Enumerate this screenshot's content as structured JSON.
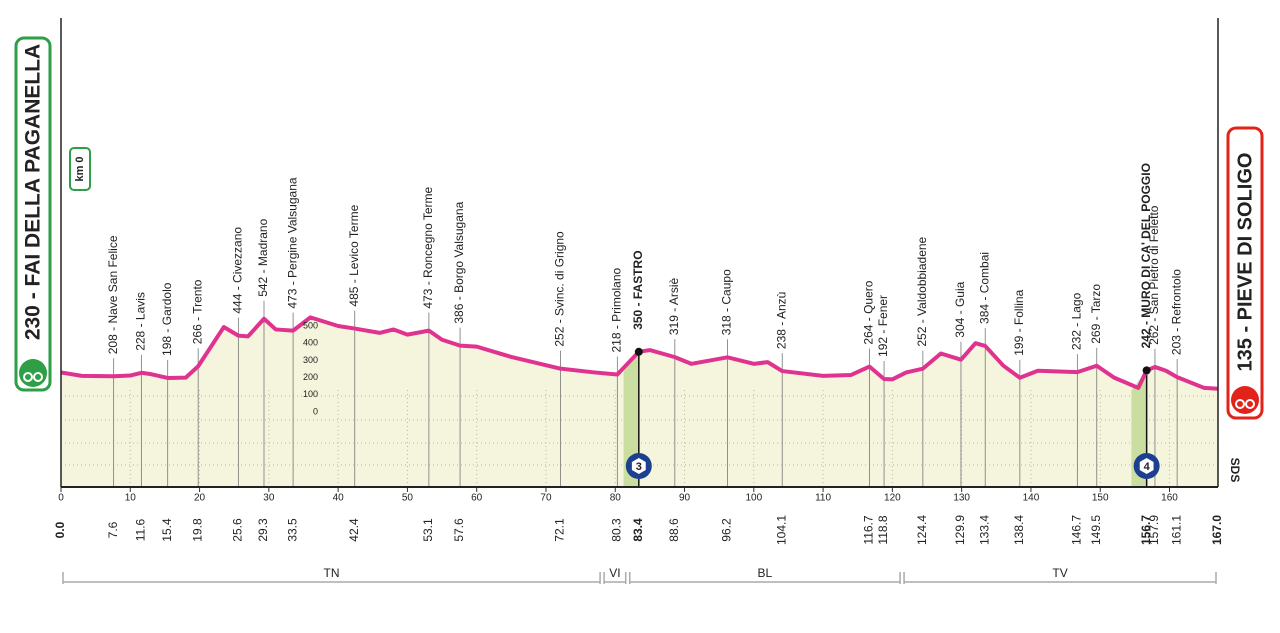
{
  "chart_data": {
    "type": "elevation-profile",
    "start": {
      "label": "230 - FAI DELLA PAGANELLA",
      "km": {
        "value": 0,
        "label": "0.0"
      },
      "marker": "km 0"
    },
    "finish": {
      "label": "135 - PIEVE DI SOLIGO",
      "km": {
        "value": 167,
        "label": "167.0"
      }
    },
    "logo": "SDS",
    "color": "#e0338f",
    "fill": "#f4f5dc",
    "climb_color": "#c9dea0",
    "xlim": [
      0,
      167
    ],
    "xticks": [
      0,
      10,
      20,
      30,
      40,
      50,
      60,
      70,
      80,
      90,
      100,
      110,
      120,
      130,
      140,
      150,
      160
    ],
    "ylim": [
      0,
      500
    ],
    "yticks": [
      0,
      100,
      200,
      300,
      400,
      500
    ],
    "x": [
      0,
      3,
      7.6,
      10,
      11.6,
      13,
      15.4,
      18,
      19.8,
      23.5,
      25.6,
      27,
      29.3,
      31,
      33.5,
      36,
      40,
      42.4,
      46,
      48,
      50,
      53.1,
      55,
      57.6,
      60,
      65,
      72.1,
      77,
      80.3,
      83.4,
      85,
      88.6,
      91,
      96.2,
      100,
      102,
      104.1,
      110,
      114,
      116.7,
      118.8,
      120,
      122,
      124.4,
      127,
      129.9,
      132,
      133.4,
      136,
      138.4,
      141,
      146.7,
      149.5,
      152,
      155.5,
      156.7,
      157.9,
      159.5,
      161.1,
      165,
      167
    ],
    "values": [
      230,
      210,
      208,
      212,
      228,
      220,
      198,
      200,
      266,
      494,
      444,
      440,
      542,
      480,
      473,
      550,
      500,
      485,
      460,
      480,
      450,
      473,
      420,
      386,
      380,
      320,
      252,
      230,
      218,
      350,
      360,
      319,
      280,
      318,
      280,
      290,
      238,
      210,
      215,
      264,
      192,
      190,
      230,
      252,
      340,
      304,
      400,
      384,
      270,
      199,
      240,
      232,
      269,
      200,
      140,
      242,
      262,
      240,
      203,
      140,
      135
    ],
    "waypoints": [
      {
        "label": "208 - Nave San Felice",
        "altitude": 208,
        "km": 7.6
      },
      {
        "label": "228 - Lavis",
        "altitude": 228,
        "km": 11.6
      },
      {
        "label": "198 - Gardolo",
        "altitude": 198,
        "km": 15.4
      },
      {
        "label": "266 - Trento",
        "altitude": 266,
        "km": 19.8
      },
      {
        "label": "444 - Civezzano",
        "altitude": 444,
        "km": 25.6
      },
      {
        "label": "542 - Madrano",
        "altitude": 542,
        "km": 29.3
      },
      {
        "label": "473 - Pergine Valsugana",
        "altitude": 473,
        "km": 33.5
      },
      {
        "label": "485 - Levico Terme",
        "altitude": 485,
        "km": 42.4
      },
      {
        "label": "473 - Roncegno Terme",
        "altitude": 473,
        "km": 53.1
      },
      {
        "label": "386 - Borgo Valsugana",
        "altitude": 386,
        "km": 57.6
      },
      {
        "label": "252 - Svinc. di Grigno",
        "altitude": 252,
        "km": 72.1
      },
      {
        "label": "218 - Primolano",
        "altitude": 218,
        "km": 80.3
      },
      {
        "label": "350 - FASTRO",
        "altitude": 350,
        "km": 83.4,
        "category": 3
      },
      {
        "label": "319 - Arsiè",
        "altitude": 319,
        "km": 88.6
      },
      {
        "label": "318 - Caupo",
        "altitude": 318,
        "km": 96.2
      },
      {
        "label": "238 - Anzù",
        "altitude": 238,
        "km": 104.1
      },
      {
        "label": "264 - Quero",
        "altitude": 264,
        "km": 116.7
      },
      {
        "label": "192 - Fener",
        "altitude": 192,
        "km": 118.8
      },
      {
        "label": "252 - Valdobbiadene",
        "altitude": 252,
        "km": 124.4
      },
      {
        "label": "304 - Guia",
        "altitude": 304,
        "km": 129.9
      },
      {
        "label": "384 - Combai",
        "altitude": 384,
        "km": 133.4
      },
      {
        "label": "199 - Follina",
        "altitude": 199,
        "km": 138.4
      },
      {
        "label": "232 - Lago",
        "altitude": 232,
        "km": 146.7
      },
      {
        "label": "269 - Tarzo",
        "altitude": 269,
        "km": 149.5
      },
      {
        "label": "242 - MURO DI CA' DEL POGGIO",
        "altitude": 242,
        "km": 156.7,
        "category": 4
      },
      {
        "label": "262 - San Pietro di Feletto",
        "altitude": 262,
        "km": 157.9
      },
      {
        "label": "203 - Refrontolo",
        "altitude": 203,
        "km": 161.1
      }
    ],
    "regions": [
      {
        "label": "TN",
        "from": 0,
        "to": 78.1
      },
      {
        "label": "VI",
        "from": 78.1,
        "to": 81.8
      },
      {
        "label": "BL",
        "from": 81.8,
        "to": 121.4
      },
      {
        "label": "TV",
        "from": 121.4,
        "to": 167
      }
    ]
  }
}
